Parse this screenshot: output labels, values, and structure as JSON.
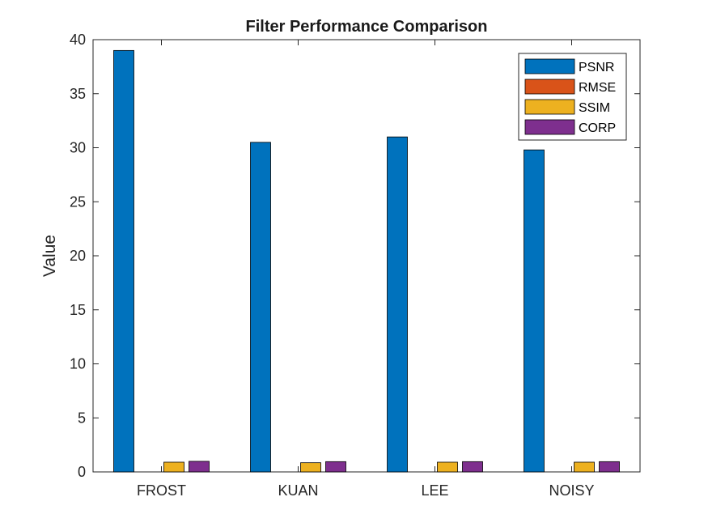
{
  "chart_data": {
    "type": "bar",
    "title": "Filter Performance Comparison",
    "xlabel": "",
    "ylabel": "Value",
    "categories": [
      "FROST",
      "KUAN",
      "LEE",
      "NOISY"
    ],
    "ylim": [
      0,
      40
    ],
    "yticks": [
      0,
      5,
      10,
      15,
      20,
      25,
      30,
      35,
      40
    ],
    "grid": false,
    "legend_position": "top-right",
    "series": [
      {
        "name": "PSNR",
        "color": "#0072BD",
        "values": [
          39.0,
          30.5,
          31.0,
          29.8
        ]
      },
      {
        "name": "RMSE",
        "color": "#D95319",
        "values": [
          0.0,
          0.0,
          0.0,
          0.0
        ]
      },
      {
        "name": "SSIM",
        "color": "#EDB120",
        "values": [
          0.9,
          0.85,
          0.9,
          0.9
        ]
      },
      {
        "name": "CORP",
        "color": "#7E2F8E",
        "values": [
          0.98,
          0.95,
          0.95,
          0.95
        ]
      }
    ]
  }
}
